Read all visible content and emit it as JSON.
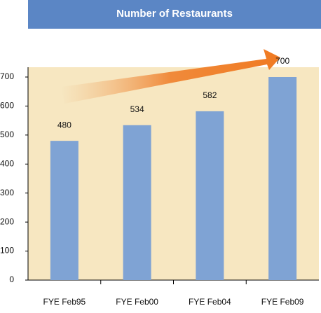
{
  "chart_data": {
    "type": "bar",
    "title": "Number of Restaurants",
    "categories": [
      "FYE Feb95",
      "FYE Feb00",
      "FYE Feb04",
      "FYE Feb09"
    ],
    "values": [
      480,
      534,
      582,
      700
    ],
    "color": "#7fa3d4",
    "ylim": [
      0,
      700
    ],
    "yticks": [
      0,
      100,
      200,
      300,
      400,
      500,
      600,
      700
    ],
    "grid": false
  }
}
